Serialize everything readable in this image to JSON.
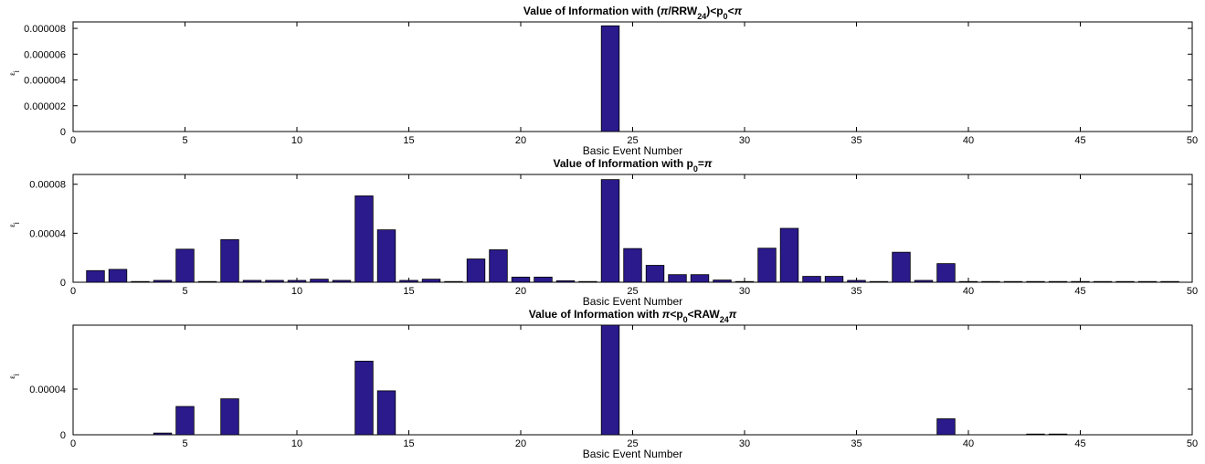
{
  "chart_data": [
    {
      "type": "bar",
      "title": {
        "pre": "Value of Information with (",
        "pi1": "π",
        "mid1": "/RRW",
        "sub1": "24",
        "mid2": ")<p",
        "sub2": "0",
        "mid3": "<",
        "pi2": "π"
      },
      "xlabel": "Basic Event Number",
      "ylabel": "ε",
      "ylabel_sub": "i",
      "xlim": [
        0,
        50
      ],
      "ylim": [
        0,
        8.5e-06
      ],
      "xticks": [
        "0",
        "5",
        "10",
        "15",
        "20",
        "25",
        "30",
        "35",
        "40",
        "45",
        "50"
      ],
      "yticks": [
        {
          "v": 0,
          "label": "0"
        },
        {
          "v": 2e-06,
          "label": "0.000002"
        },
        {
          "v": 4e-06,
          "label": "0.000004"
        },
        {
          "v": 6e-06,
          "label": "0.000006"
        },
        {
          "v": 8e-06,
          "label": "0.000008"
        }
      ],
      "bar_color": "#2a1a8c",
      "x": [
        24
      ],
      "values": [
        8.2e-06
      ]
    },
    {
      "type": "bar",
      "title": {
        "pre": "Value of Information with p",
        "sub1": "0",
        "mid1": "=",
        "pi1": "π"
      },
      "xlabel": "Basic Event Number",
      "ylabel": "ε",
      "ylabel_sub": "i",
      "xlim": [
        0,
        50
      ],
      "ylim": [
        0,
        8.8e-05
      ],
      "xticks": [
        "0",
        "5",
        "10",
        "15",
        "20",
        "25",
        "30",
        "35",
        "40",
        "45",
        "50"
      ],
      "yticks": [
        {
          "v": 0,
          "label": "0"
        },
        {
          "v": 4e-05,
          "label": "0.00004"
        },
        {
          "v": 8e-05,
          "label": "0.00008"
        }
      ],
      "bar_color": "#2a1a8c",
      "x": [
        1,
        2,
        3,
        4,
        5,
        6,
        7,
        8,
        9,
        10,
        11,
        12,
        13,
        14,
        15,
        16,
        17,
        18,
        19,
        20,
        21,
        22,
        23,
        24,
        25,
        26,
        27,
        28,
        29,
        30,
        31,
        32,
        33,
        34,
        35,
        36,
        37,
        38,
        39,
        40,
        41,
        42,
        43,
        44,
        45,
        46,
        47,
        48,
        49
      ],
      "values": [
        9.5e-06,
        1.05e-05,
        5e-07,
        1.5e-06,
        2.7e-05,
        5e-07,
        3.48e-05,
        1.5e-06,
        1.5e-06,
        1.5e-06,
        2.5e-06,
        1.5e-06,
        7.05e-05,
        4.28e-05,
        1.5e-06,
        2.5e-06,
        5e-07,
        1.9e-05,
        2.65e-05,
        4.2e-06,
        4.2e-06,
        1.2e-06,
        5e-07,
        8.38e-05,
        2.75e-05,
        1.38e-05,
        6.2e-06,
        6.2e-06,
        1.8e-06,
        5e-07,
        2.78e-05,
        4.4e-05,
        4.8e-06,
        4.8e-06,
        1.5e-06,
        5e-07,
        2.45e-05,
        1.5e-06,
        1.52e-05,
        5e-07,
        3e-07,
        3e-07,
        6e-07,
        6e-07,
        3e-07,
        3e-07,
        3e-07,
        3e-07,
        3e-07
      ]
    },
    {
      "type": "bar",
      "title": {
        "pre": "Value of Information with ",
        "pi1": "π",
        "mid1": "<p",
        "sub1": "0",
        "mid2": "<RAW",
        "sub2": "24",
        "pi2": "π"
      },
      "xlabel": "Basic Event Number",
      "ylabel": "ε",
      "ylabel_sub": "i",
      "xlim": [
        0,
        50
      ],
      "ylim": [
        0,
        9.6e-05
      ],
      "xticks": [
        "0",
        "5",
        "10",
        "15",
        "20",
        "25",
        "30",
        "35",
        "40",
        "45",
        "50"
      ],
      "yticks": [
        {
          "v": 0,
          "label": "0"
        },
        {
          "v": 4e-05,
          "label": "0.00004"
        }
      ],
      "bar_color": "#2a1a8c",
      "x": [
        4,
        5,
        7,
        13,
        14,
        24,
        39,
        43,
        44
      ],
      "values": [
        1.5e-06,
        2.48e-05,
        3.15e-05,
        6.45e-05,
        3.85e-05,
        9.6e-05,
        1.4e-05,
        6e-07,
        6e-07
      ]
    }
  ]
}
